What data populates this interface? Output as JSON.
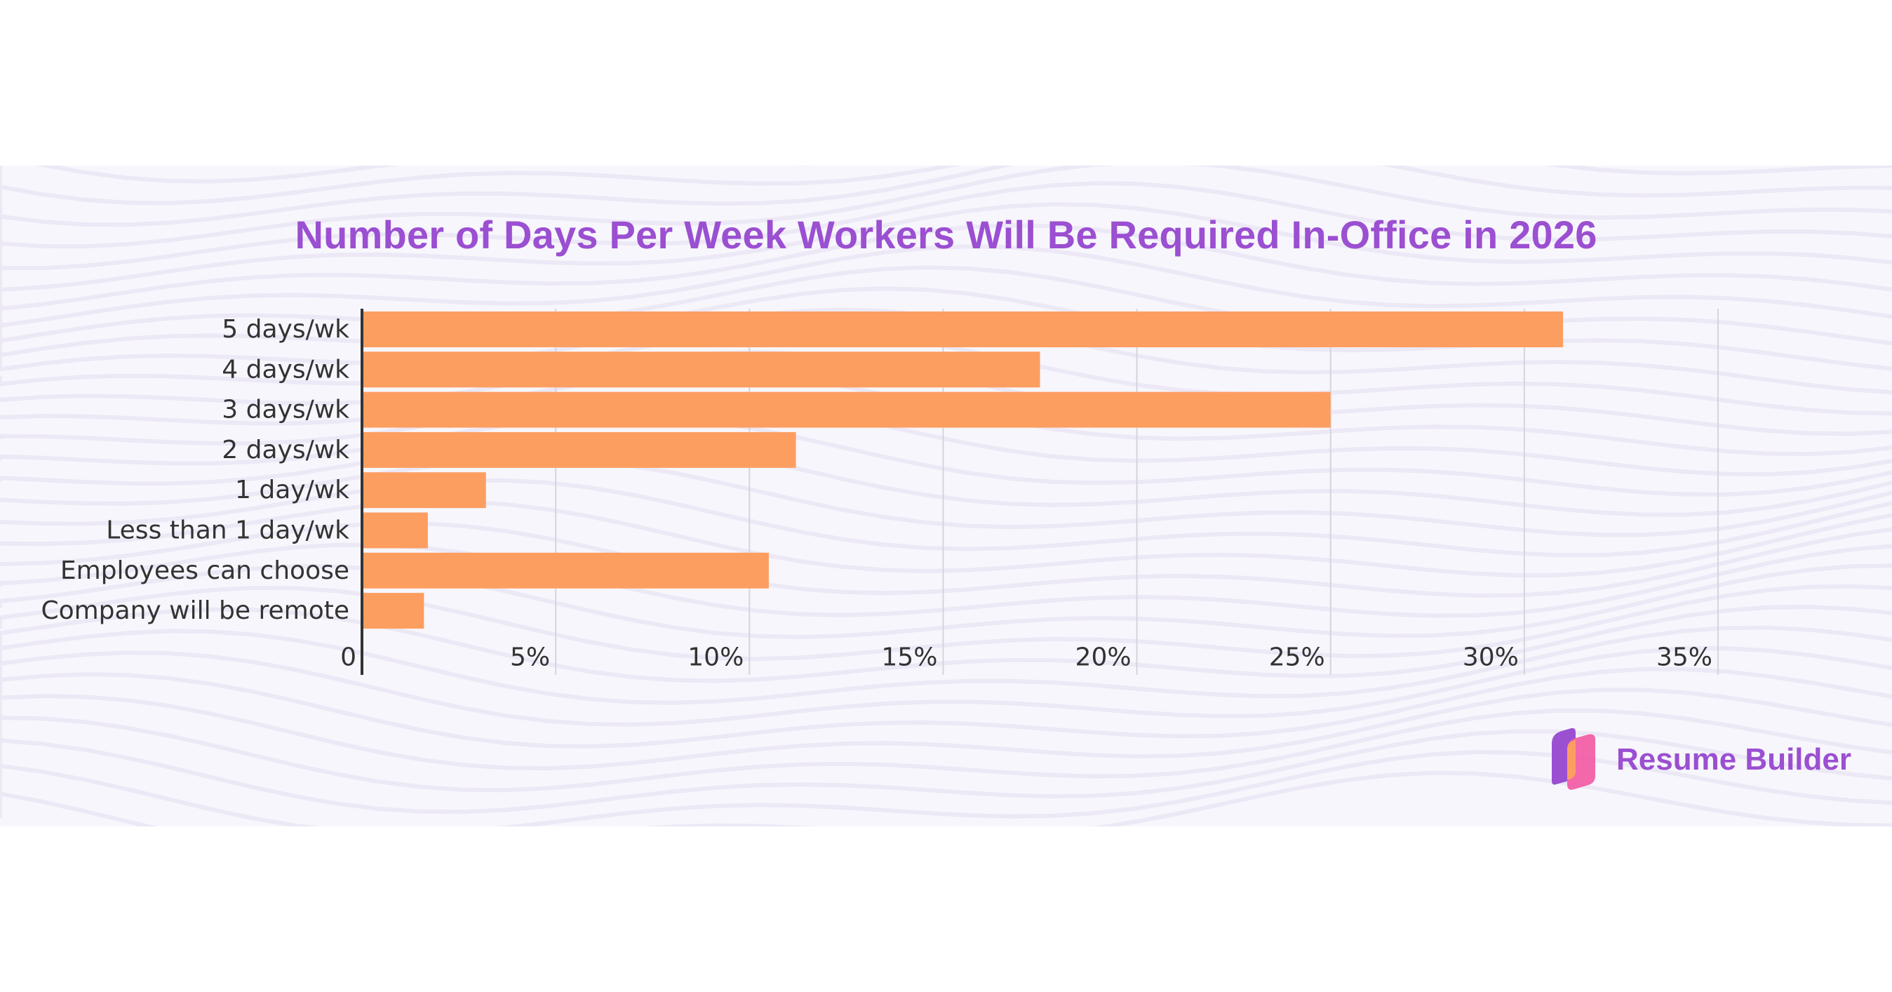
{
  "chart_data": {
    "type": "bar",
    "orientation": "horizontal",
    "title": "Number of Days Per Week Workers Will Be Required In-Office in 2026",
    "categories": [
      "5 days/wk",
      "4 days/wk",
      "3 days/wk",
      "2 days/wk",
      "1 day/wk",
      "Less than 1 day/wk",
      "Employees can choose",
      "Company will be remote"
    ],
    "values": [
      31,
      17.5,
      25,
      11.2,
      3.2,
      1.7,
      10.5,
      1.6
    ],
    "xlim": [
      0,
      35
    ],
    "xticks": [
      0,
      5,
      10,
      15,
      20,
      25,
      30,
      35
    ],
    "xtick_labels": [
      "0",
      "5%",
      "10%",
      "15%",
      "20%",
      "25%",
      "30%",
      "35%"
    ],
    "xlabel": "",
    "ylabel": "",
    "grid": "vertical",
    "bar_color": "#fd9e61"
  },
  "branding": {
    "logo_text": "Resume Builder",
    "logo_icon": "resume-builder-logo-icon"
  },
  "colors": {
    "title": "#9b4fd1",
    "bar": "#fd9e61",
    "background_band": "#f7f6fc"
  }
}
